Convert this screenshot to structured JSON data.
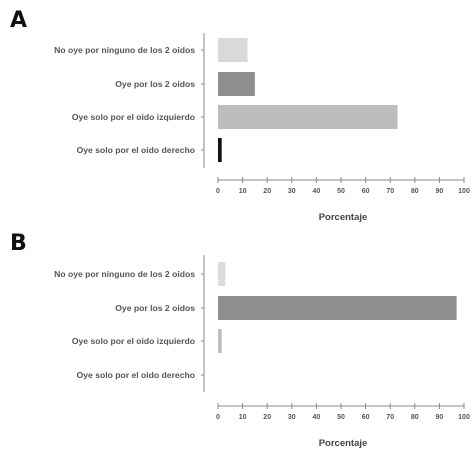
{
  "chart_data": [
    {
      "type": "bar",
      "orientation": "horizontal",
      "panel_label": "A",
      "categories": [
        "No oye por ninguno de los 2 oidos",
        "Oye por los 2 oidos",
        "Oye solo por el oido izquierdo",
        "Oye solo por el oido derecho"
      ],
      "values": [
        12,
        15,
        73,
        1.5
      ],
      "colors": [
        "#d9d9d9",
        "#8f8f8f",
        "#bdbdbd",
        "#111111"
      ],
      "xlabel": "Porcentaje",
      "xlim": [
        0,
        100
      ],
      "xticks": [
        0,
        10,
        20,
        30,
        40,
        50,
        60,
        70,
        80,
        90,
        100
      ],
      "grid": false
    },
    {
      "type": "bar",
      "orientation": "horizontal",
      "panel_label": "B",
      "categories": [
        "No oye por ninguno de los 2 oidos",
        "Oye por los 2 oidos",
        "Oye solo por el oido izquierdo",
        "Oye solo por el oido derecho"
      ],
      "values": [
        3,
        97,
        1.5,
        0
      ],
      "colors": [
        "#dcdcdc",
        "#8f8f8f",
        "#bdbdbd",
        "#111111"
      ],
      "xlabel": "Porcentaje",
      "xlim": [
        0,
        100
      ],
      "xticks": [
        0,
        10,
        20,
        30,
        40,
        50,
        60,
        70,
        80,
        90,
        100
      ],
      "grid": false
    }
  ]
}
